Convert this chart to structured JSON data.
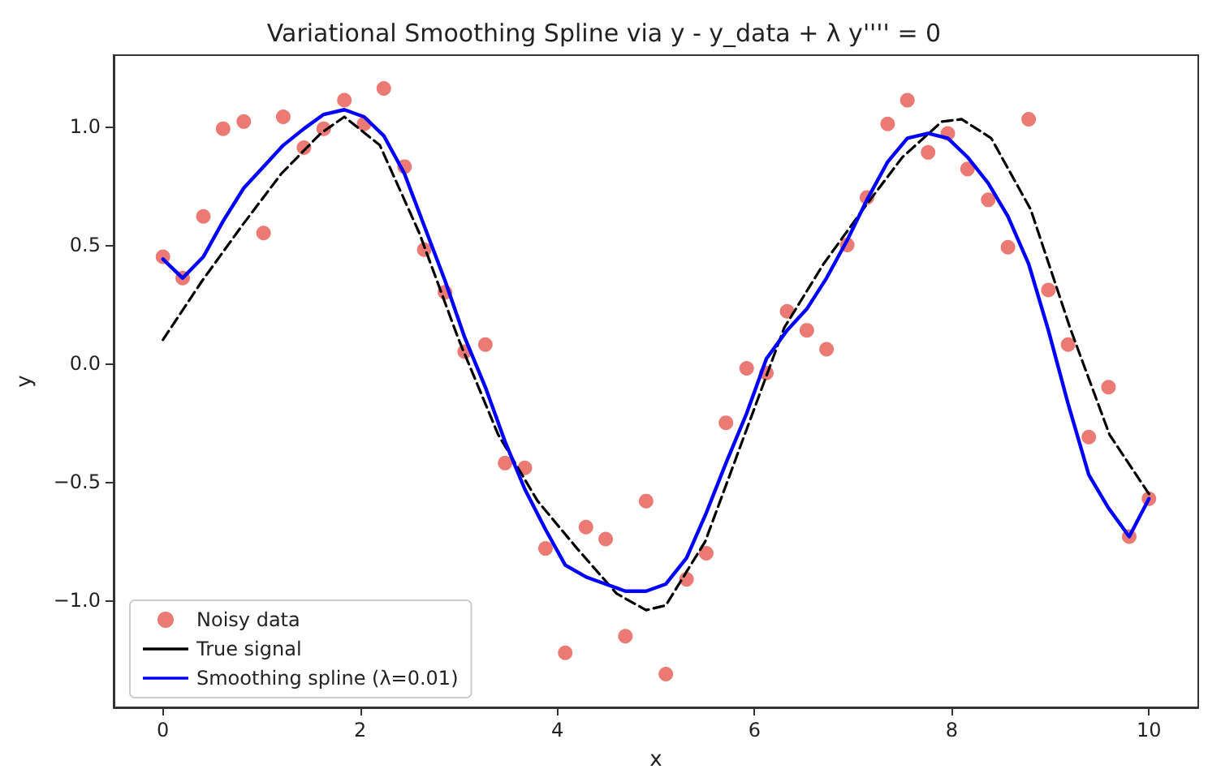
{
  "chart_data": {
    "type": "scatter",
    "title": "Variational Smoothing Spline via y - y_data + λ y'''' = 0",
    "xlabel": "x",
    "ylabel": "y",
    "xlim": [
      -0.5,
      10.5
    ],
    "xticks": [
      0,
      2,
      4,
      6,
      8,
      10
    ],
    "ylim": [
      -1.45,
      1.3
    ],
    "yticks": [
      {
        "value": -1,
        "label": "−1.0"
      },
      {
        "value": -0.5,
        "label": "−0.5"
      },
      {
        "value": 0,
        "label": "0.0"
      },
      {
        "value": 0.5,
        "label": "0.5"
      },
      {
        "value": 1,
        "label": "1.0"
      }
    ],
    "grid": false,
    "legend": "bottom left",
    "series": [
      {
        "name": "Noisy data",
        "type": "scatter",
        "marker": "circle",
        "color": "#e8625c",
        "x": [
          0,
          0.2,
          0.41,
          0.61,
          0.82,
          1.02,
          1.22,
          1.43,
          1.63,
          1.84,
          2.04,
          2.24,
          2.45,
          2.65,
          2.86,
          3.06,
          3.27,
          3.47,
          3.67,
          3.88,
          4.08,
          4.29,
          4.49,
          4.69,
          4.9,
          5.1,
          5.31,
          5.51,
          5.71,
          5.92,
          6.12,
          6.33,
          6.53,
          6.73,
          6.94,
          7.14,
          7.35,
          7.55,
          7.76,
          7.96,
          8.16,
          8.37,
          8.57,
          8.78,
          8.98,
          9.18,
          9.39,
          9.59,
          9.8,
          10
        ],
        "values": [
          0.45,
          0.36,
          0.62,
          0.99,
          1.02,
          0.55,
          1.04,
          0.91,
          0.99,
          1.11,
          1.01,
          1.16,
          0.83,
          0.48,
          0.3,
          0.05,
          0.08,
          -0.42,
          -0.44,
          -0.78,
          -1.22,
          -0.69,
          -0.74,
          -1.15,
          -0.58,
          -1.31,
          -0.91,
          -0.8,
          -0.25,
          -0.02,
          -0.04,
          0.22,
          0.14,
          0.06,
          0.5,
          0.7,
          1.01,
          1.11,
          0.89,
          0.97,
          0.82,
          0.69,
          0.49,
          1.03,
          0.31,
          0.08,
          -0.31,
          -0.1,
          -0.73,
          -0.57
        ]
      },
      {
        "name": "True signal",
        "type": "line",
        "marker": "none",
        "line_style": "dashed",
        "color": "#000000",
        "x": [
          0,
          0.4,
          0.8,
          1.2,
          1.6,
          1.84,
          2.2,
          2.6,
          3.0,
          3.4,
          3.8,
          4.2,
          4.6,
          4.9,
          5.1,
          5.5,
          5.9,
          6.3,
          6.7,
          7.1,
          7.5,
          7.9,
          8.1,
          8.4,
          8.8,
          9.2,
          9.6,
          10
        ],
        "values": [
          0.1,
          0.35,
          0.58,
          0.8,
          0.97,
          1.04,
          0.92,
          0.55,
          0.1,
          -0.3,
          -0.58,
          -0.78,
          -0.97,
          -1.04,
          -1.02,
          -0.75,
          -0.3,
          0.15,
          0.42,
          0.65,
          0.87,
          1.02,
          1.03,
          0.95,
          0.65,
          0.15,
          -0.3,
          -0.55
        ]
      },
      {
        "name": "Smoothing spline (λ=0.01)",
        "type": "line",
        "marker": "none",
        "line_style": "solid",
        "color": "#0000ff",
        "x": [
          0,
          0.2,
          0.41,
          0.61,
          0.82,
          1.02,
          1.22,
          1.43,
          1.63,
          1.84,
          2.04,
          2.24,
          2.45,
          2.65,
          2.86,
          3.06,
          3.27,
          3.47,
          3.67,
          3.88,
          4.08,
          4.29,
          4.49,
          4.69,
          4.9,
          5.1,
          5.31,
          5.51,
          5.71,
          5.92,
          6.12,
          6.33,
          6.53,
          6.73,
          6.94,
          7.14,
          7.35,
          7.55,
          7.76,
          7.96,
          8.16,
          8.37,
          8.57,
          8.78,
          8.98,
          9.18,
          9.39,
          9.59,
          9.8,
          10
        ],
        "values": [
          0.44,
          0.36,
          0.45,
          0.6,
          0.74,
          0.83,
          0.92,
          0.99,
          1.05,
          1.07,
          1.04,
          0.96,
          0.8,
          0.58,
          0.35,
          0.11,
          -0.1,
          -0.33,
          -0.53,
          -0.7,
          -0.85,
          -0.9,
          -0.93,
          -0.96,
          -0.96,
          -0.93,
          -0.82,
          -0.63,
          -0.42,
          -0.21,
          0.02,
          0.14,
          0.23,
          0.36,
          0.52,
          0.69,
          0.85,
          0.95,
          0.97,
          0.95,
          0.87,
          0.76,
          0.62,
          0.42,
          0.14,
          -0.17,
          -0.47,
          -0.61,
          -0.73,
          -0.57
        ]
      }
    ]
  }
}
